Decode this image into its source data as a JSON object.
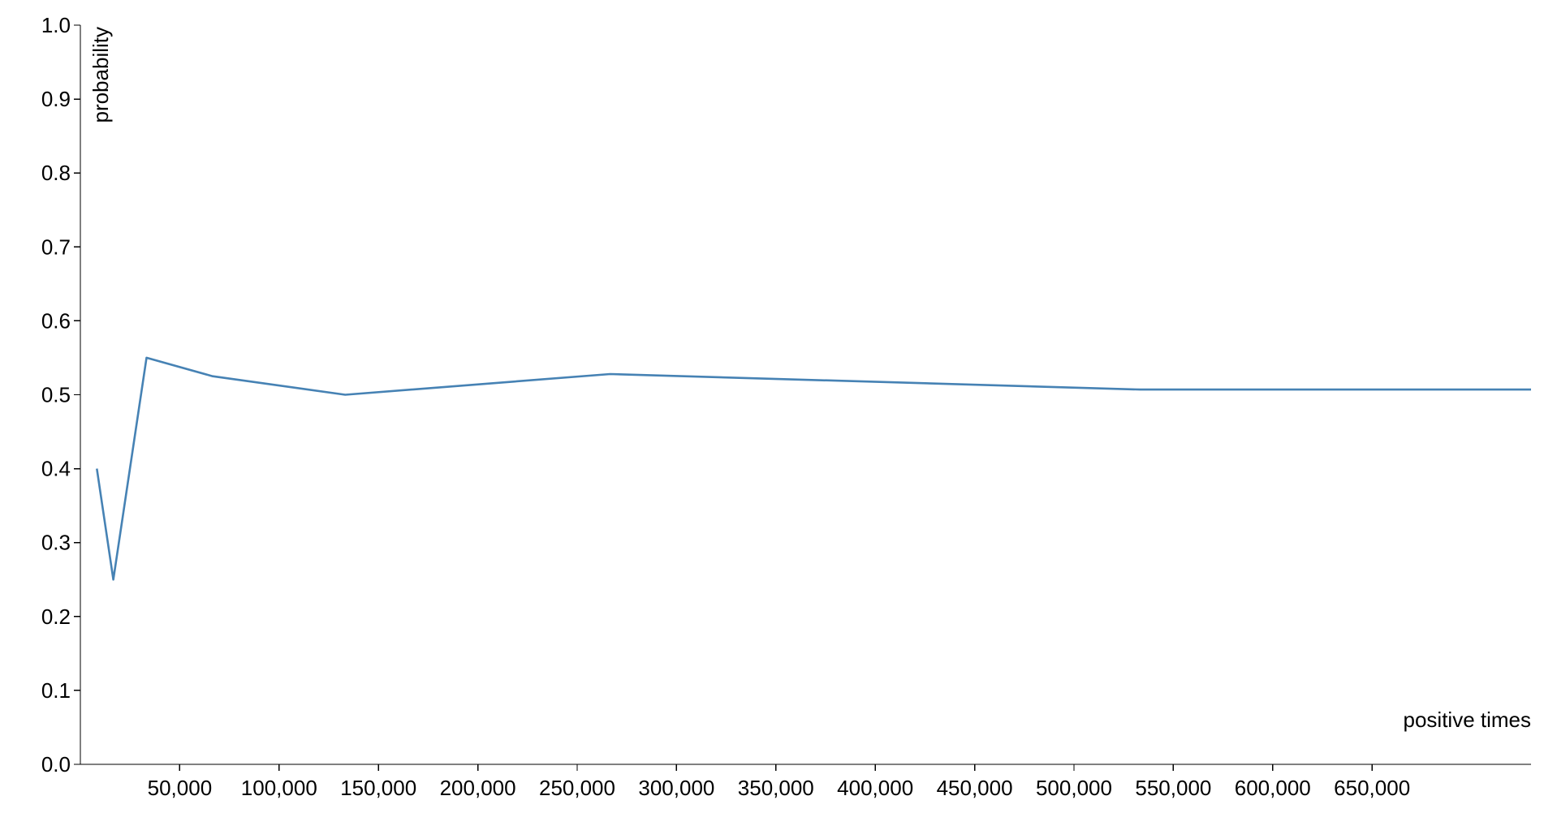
{
  "chart_data": {
    "type": "line",
    "title": "",
    "xlabel": "positive times",
    "ylabel": "probability",
    "xlim": [
      0,
      730000
    ],
    "ylim": [
      0,
      1
    ],
    "x_ticks": [
      {
        "value": 50000,
        "label": "50,000"
      },
      {
        "value": 100000,
        "label": "100,000"
      },
      {
        "value": 150000,
        "label": "150,000"
      },
      {
        "value": 200000,
        "label": "200,000"
      },
      {
        "value": 250000,
        "label": "250,000"
      },
      {
        "value": 300000,
        "label": "300,000"
      },
      {
        "value": 350000,
        "label": "350,000"
      },
      {
        "value": 400000,
        "label": "400,000"
      },
      {
        "value": 450000,
        "label": "450,000"
      },
      {
        "value": 500000,
        "label": "500,000"
      },
      {
        "value": 550000,
        "label": "550,000"
      },
      {
        "value": 600000,
        "label": "600,000"
      },
      {
        "value": 650000,
        "label": "650,000"
      }
    ],
    "y_ticks": [
      {
        "value": 0.0,
        "label": "0.0"
      },
      {
        "value": 0.1,
        "label": "0.1"
      },
      {
        "value": 0.2,
        "label": "0.2"
      },
      {
        "value": 0.3,
        "label": "0.3"
      },
      {
        "value": 0.4,
        "label": "0.4"
      },
      {
        "value": 0.5,
        "label": "0.5"
      },
      {
        "value": 0.6,
        "label": "0.6"
      },
      {
        "value": 0.7,
        "label": "0.7"
      },
      {
        "value": 0.8,
        "label": "0.8"
      },
      {
        "value": 0.9,
        "label": "0.9"
      },
      {
        "value": 1.0,
        "label": "1.0"
      }
    ],
    "grid": false,
    "series": [
      {
        "color": "#4682b4",
        "x": [
          8300,
          16600,
          33300,
          66600,
          133300,
          266600,
          533300,
          730000
        ],
        "values": [
          0.4,
          0.25,
          0.55,
          0.525,
          0.5,
          0.528,
          0.507,
          0.507
        ]
      }
    ]
  }
}
